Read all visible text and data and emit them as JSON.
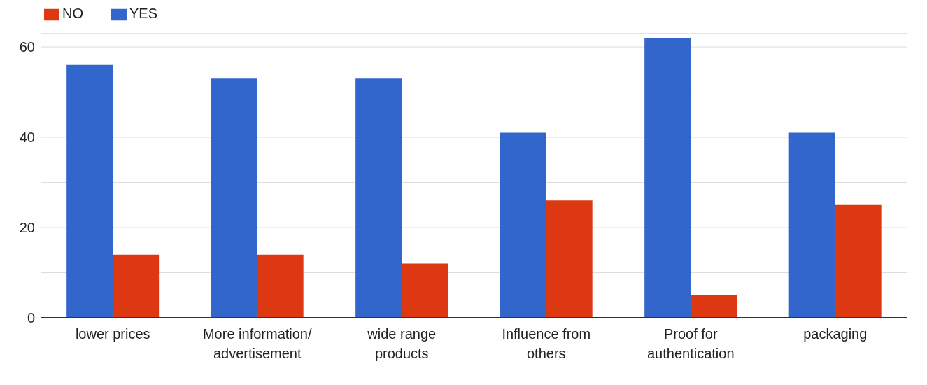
{
  "chart_data": {
    "type": "bar",
    "categories": [
      "lower prices",
      "More information/ advertisement",
      "wide range products",
      "Influence from others",
      "Proof for authentication",
      "packaging"
    ],
    "series": [
      {
        "name": "YES",
        "color": "#3366cc",
        "values": [
          56,
          53,
          53,
          41,
          62,
          41
        ]
      },
      {
        "name": "NO",
        "color": "#dc3912",
        "values": [
          14,
          14,
          12,
          26,
          5,
          25
        ]
      }
    ],
    "ylim": [
      0,
      63
    ],
    "yticks": [
      0,
      {
        "value": 10,
        "label": null
      },
      20,
      {
        "value": 30,
        "label": null
      },
      40,
      {
        "value": 50,
        "label": null
      },
      60
    ],
    "grid": "y",
    "legend": "top left"
  }
}
